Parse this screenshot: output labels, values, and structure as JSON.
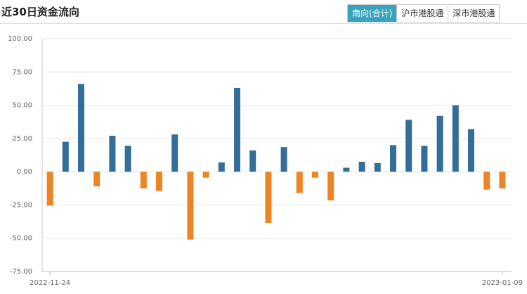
{
  "header": {
    "title": "近30日资金流向",
    "tabs": [
      "南向(合计)",
      "沪市港股通",
      "深市港股通"
    ]
  },
  "chart_data": {
    "type": "bar",
    "categories": [
      "2022-11-24",
      null,
      null,
      null,
      null,
      null,
      null,
      null,
      null,
      null,
      null,
      null,
      null,
      null,
      null,
      null,
      null,
      null,
      null,
      null,
      null,
      null,
      null,
      null,
      null,
      null,
      null,
      null,
      null,
      "2023-01-09"
    ],
    "values": [
      -25.5,
      22.5,
      66,
      -11,
      27,
      19.5,
      -12.5,
      -14.5,
      28,
      -51,
      -4.5,
      7,
      63,
      16,
      -38.5,
      18.5,
      -16,
      -4.5,
      -21.5,
      3,
      7.5,
      6.5,
      20,
      39,
      19.5,
      42,
      50,
      32,
      -13.5,
      -12.5
    ],
    "positive_color": "#336e98",
    "negative_color": "#ef8424",
    "ylim": [
      -75,
      100
    ],
    "yticks": [
      {
        "value": -75,
        "label": "-75.00"
      },
      {
        "value": -50,
        "label": "-50.00"
      },
      {
        "value": -25,
        "label": "-25.00"
      },
      {
        "value": 0,
        "label": "0.00"
      },
      {
        "value": 25,
        "label": "25.00"
      },
      {
        "value": 50,
        "label": "50.00"
      },
      {
        "value": 75,
        "label": "75.00"
      },
      {
        "value": 100,
        "label": "100.00"
      }
    ],
    "grid": true
  }
}
